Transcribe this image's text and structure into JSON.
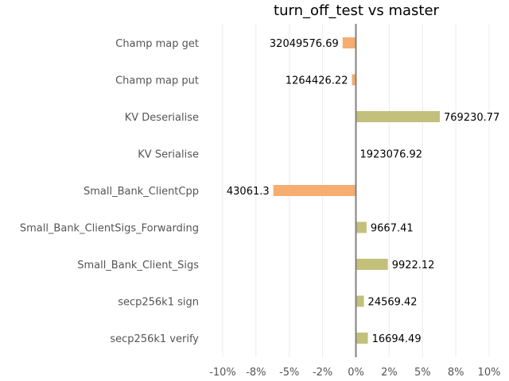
{
  "chart_data": {
    "type": "bar",
    "orientation": "horizontal",
    "title": "turn_off_test vs master",
    "xlabel": "",
    "ylabel": "",
    "xlim": [
      -10,
      10
    ],
    "x_ticks": [
      -10,
      -7.5,
      -5,
      -2.5,
      0,
      2.5,
      5,
      7.5,
      10
    ],
    "x_tick_labels": [
      "-10%",
      "-8%",
      "-5%",
      "-2%",
      "0%",
      "2%",
      "5%",
      "8%",
      "10%"
    ],
    "grid": "vertical",
    "colors": {
      "negative": "#f5ad70",
      "positive": "#c3c07c",
      "zero_line": "#808080"
    },
    "categories": [
      "Champ map get",
      "Champ map put",
      "KV Deserialise",
      "KV Serialise",
      "Small_Bank_ClientCpp",
      "Small_Bank_ClientSigs_Forwarding",
      "Small_Bank_Client_Sigs",
      "secp256k1 sign",
      "secp256k1 verify"
    ],
    "values": [
      -1.0,
      -0.3,
      6.3,
      0.0,
      -6.2,
      0.8,
      2.4,
      0.6,
      0.9
    ],
    "data_labels": [
      "32049576.69",
      "1264426.22",
      "769230.77",
      "1923076.92",
      "43061.3",
      "9667.41",
      "9922.12",
      "24569.42",
      "16694.49"
    ]
  }
}
